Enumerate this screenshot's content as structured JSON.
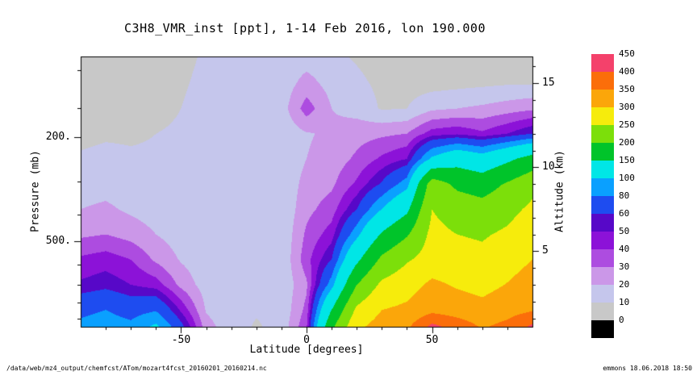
{
  "title": "C3H8_VMR_inst [ppt], 1-14 Feb 2016, lon 190.000",
  "footer": {
    "left": "/data/web/mz4_output/chemfcst/ATom/mozart4fcst_20160201_20160214.nc",
    "right": "emmons 18.06.2018 18:50"
  },
  "axes": {
    "x": {
      "label": "Latitude [degrees]",
      "range": [
        -90,
        90
      ],
      "major_ticks": [
        -50,
        0,
        50
      ],
      "major_tick_labels": [
        "-50",
        "0",
        "50"
      ],
      "minor_tick_step": 10
    },
    "y_left": {
      "label": "Pressure (mb)",
      "major_ticks": [
        200,
        500
      ],
      "major_tick_labels": [
        "200.",
        "500."
      ],
      "minor_ticks": [
        100,
        150,
        300,
        400,
        600,
        700,
        800,
        900
      ]
    },
    "y_right": {
      "label": "Altitude (km)",
      "range_km": [
        0.5,
        16.6
      ],
      "major_ticks": [
        5,
        10,
        15
      ],
      "major_tick_labels": [
        "5",
        "10",
        "15"
      ],
      "minor_tick_step": 1
    }
  },
  "colorbar": {
    "levels": [
      0,
      10,
      20,
      30,
      40,
      50,
      60,
      80,
      100,
      150,
      200,
      250,
      300,
      350,
      400,
      450
    ],
    "labels_top_to_bottom": [
      "450",
      "400",
      "350",
      "300",
      "250",
      "200",
      "150",
      "100",
      "80",
      "60",
      "50",
      "40",
      "30",
      "20",
      "10",
      "0"
    ],
    "colors_low_to_high": [
      "#000000",
      "#c8c8c8",
      "#c5c6ec",
      "#cb97e8",
      "#ad4ce0",
      "#8c12d8",
      "#5708c8",
      "#1e4cf0",
      "#0aa0ff",
      "#00e6e6",
      "#00c42a",
      "#7cdf0a",
      "#f6ec0c",
      "#fba60a",
      "#fb6e0a",
      "#f4416b",
      "#ffffff"
    ]
  },
  "chart_data": {
    "type": "heatmap",
    "subtype": "filled-contour",
    "title": "C3H8_VMR_inst [ppt], 1-14 Feb 2016, lon 190.000",
    "xlabel": "Latitude [degrees]",
    "ylabel_left": "Pressure (mb)",
    "ylabel_right": "Altitude (km)",
    "units": "ppt",
    "xlim": [
      -90,
      90
    ],
    "alt_lim_km": [
      0.5,
      16.6
    ],
    "grid": "off",
    "legend_position": "right-colorbar",
    "rows_order": "bottom-to-top",
    "x_lat": [
      -90,
      -80,
      -70,
      -60,
      -50,
      -40,
      -30,
      -20,
      -10,
      0,
      10,
      20,
      30,
      40,
      50,
      60,
      70,
      80,
      90
    ],
    "y_alt_km": [
      0.5,
      1.5,
      3,
      4.5,
      6,
      7.5,
      9,
      10.5,
      12,
      13.5,
      15,
      16.6
    ],
    "values_ppt": [
      [
        85,
        90,
        85,
        105,
        65,
        24,
        14,
        9,
        13,
        38,
        190,
        290,
        320,
        340,
        415,
        380,
        345,
        365,
        410
      ],
      [
        75,
        80,
        72,
        78,
        48,
        19,
        13,
        11,
        12,
        33,
        150,
        260,
        300,
        310,
        335,
        325,
        315,
        330,
        345
      ],
      [
        52,
        56,
        50,
        45,
        27,
        15,
        12,
        11,
        12,
        28,
        90,
        200,
        260,
        280,
        310,
        295,
        285,
        302,
        322
      ],
      [
        42,
        45,
        40,
        28,
        19,
        13,
        11,
        10,
        11,
        36,
        60,
        140,
        210,
        245,
        270,
        268,
        262,
        280,
        300
      ],
      [
        28,
        30,
        26,
        20,
        15,
        13,
        11,
        10,
        11,
        32,
        45,
        92,
        155,
        195,
        263,
        250,
        245,
        258,
        282
      ],
      [
        20,
        22,
        18,
        15,
        13,
        12,
        11,
        10,
        11,
        27,
        35,
        60,
        100,
        140,
        250,
        228,
        218,
        235,
        260
      ],
      [
        15,
        16,
        14,
        13,
        12,
        11,
        10,
        10,
        11,
        24,
        28,
        42,
        62,
        90,
        225,
        190,
        178,
        205,
        235
      ],
      [
        11,
        12,
        11,
        11,
        11,
        11,
        10,
        10,
        11,
        20,
        24,
        32,
        42,
        50,
        105,
        130,
        115,
        140,
        168
      ],
      [
        8,
        9,
        9,
        10,
        11,
        12,
        12,
        12,
        13,
        19,
        22,
        26,
        28,
        30,
        45,
        48,
        42,
        50,
        60
      ],
      [
        6,
        7,
        7,
        8,
        10,
        13,
        14,
        14,
        15,
        35,
        20,
        16,
        9,
        10,
        18,
        20,
        22,
        25,
        28
      ],
      [
        4,
        5,
        5,
        6,
        9,
        12,
        13,
        13,
        14,
        24,
        16,
        12,
        8,
        6,
        6,
        7,
        8,
        9,
        9
      ],
      [
        3,
        3,
        4,
        5,
        8,
        11,
        12,
        12,
        13,
        15,
        12,
        9,
        6,
        5,
        4,
        4,
        5,
        6,
        7
      ]
    ]
  }
}
